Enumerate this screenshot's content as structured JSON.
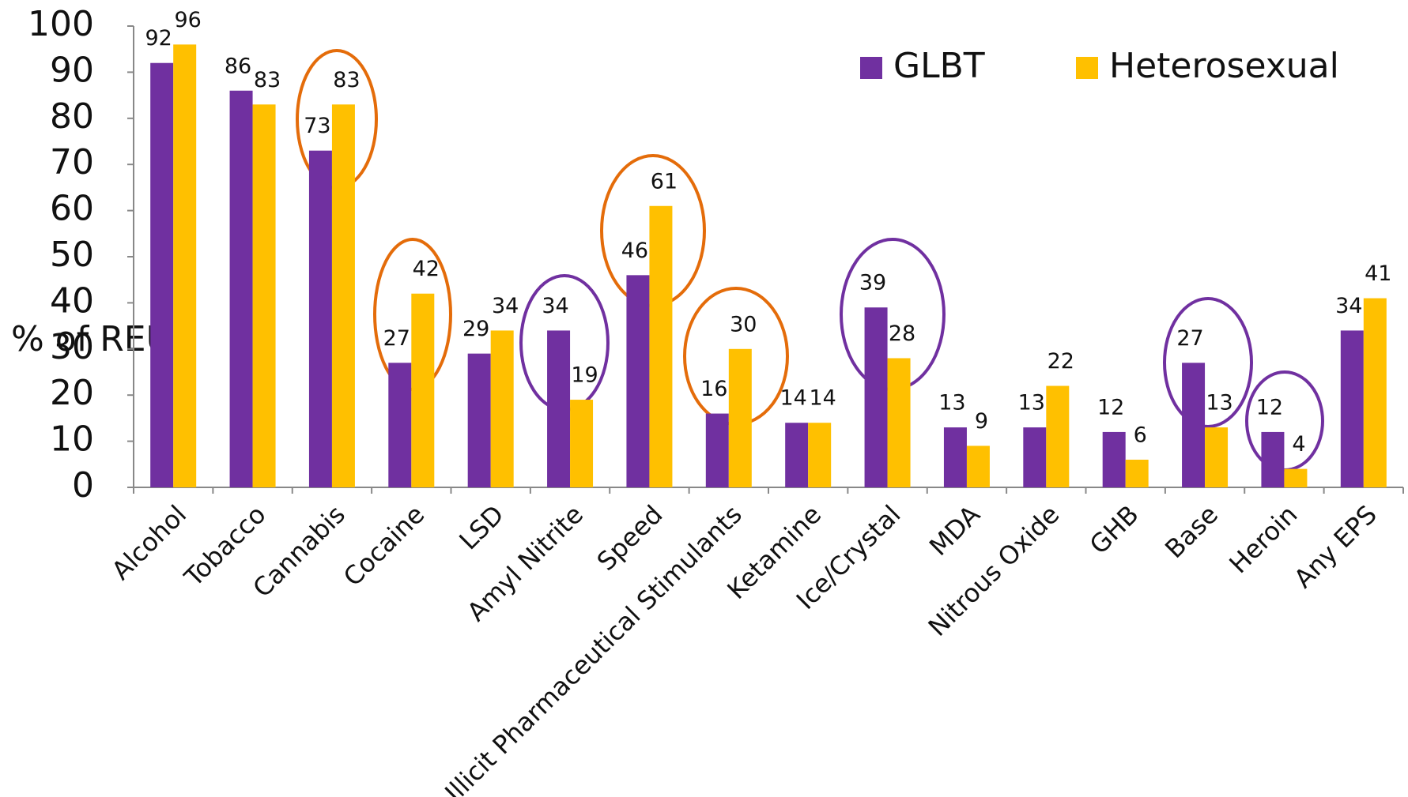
{
  "chart_data": {
    "type": "bar",
    "y_label": "% of REU",
    "categories": [
      "Alcohol",
      "Tobacco",
      "Cannabis",
      "Cocaine",
      "LSD",
      "Amyl Nitrite",
      "Speed",
      "Illicit Pharmaceutical Stimulants",
      "Ketamine",
      "Ice/Crystal",
      "MDA",
      "Nitrous Oxide",
      "GHB",
      "Base",
      "Heroin",
      "Any EPS"
    ],
    "series": [
      {
        "name": "GLBT",
        "color": "#7030a0",
        "values": [
          92,
          86,
          73,
          27,
          29,
          34,
          46,
          16,
          14,
          39,
          13,
          13,
          12,
          27,
          12,
          34
        ]
      },
      {
        "name": "Heterosexual",
        "color": "#ffc000",
        "values": [
          96,
          83,
          83,
          42,
          34,
          19,
          61,
          30,
          14,
          28,
          9,
          22,
          6,
          13,
          4,
          41
        ]
      }
    ],
    "ylim": [
      0,
      100
    ],
    "yticks": [
      0,
      10,
      20,
      30,
      40,
      50,
      60,
      70,
      80,
      90,
      100
    ],
    "grid": false,
    "legend": "top-right"
  }
}
